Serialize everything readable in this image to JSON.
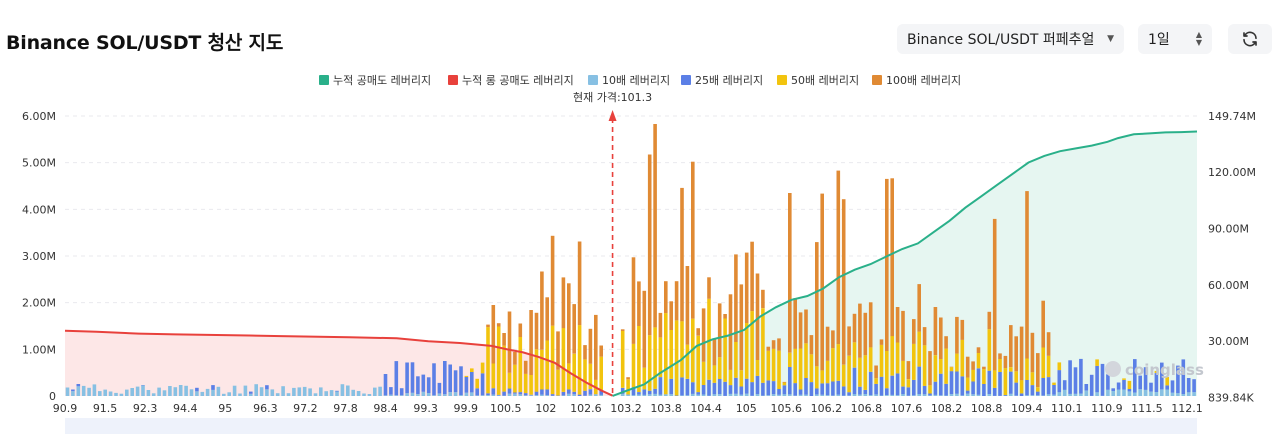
{
  "page": {
    "title": "Binance SOL/USDT 청산 지도"
  },
  "controls": {
    "exchange_select": {
      "value": "Binance SOL/USDT 퍼페추얼",
      "icon": "chevron-down-icon"
    },
    "interval_select": {
      "value": "1일",
      "icon": "up-down-arrows-icon"
    },
    "refresh_button": {
      "icon": "refresh-icon"
    }
  },
  "colors": {
    "cum_short": "#2ab08a",
    "cum_long": "#e8413c",
    "lev10": "#87c0e3",
    "lev25": "#5b7fe6",
    "lev50": "#f2c40e",
    "lev100": "#e08a34",
    "short_fill": "#e6f6f1",
    "long_fill": "#fde7e7"
  },
  "chart_data": {
    "type": "bar",
    "title": "",
    "legend": [
      {
        "key": "cum_short",
        "label": "누적 공매도 레버리지",
        "shape": "square"
      },
      {
        "key": "cum_long",
        "label": "누적 롱 공매도 레버리지",
        "shape": "square"
      },
      {
        "key": "lev10",
        "label": "10배 레버리지",
        "shape": "square"
      },
      {
        "key": "lev25",
        "label": "25배 레버리지",
        "shape": "square"
      },
      {
        "key": "lev50",
        "label": "50배 레버리지",
        "shape": "square"
      },
      {
        "key": "lev100",
        "label": "100배 레버리지",
        "shape": "square"
      }
    ],
    "legend_position": "top-center",
    "current_price": {
      "value": 101.3,
      "label": "현재 가격:101.3"
    },
    "x_range": [
      90.9,
      112.4
    ],
    "x_ticks": [
      "90.9",
      "91.5",
      "92.3",
      "94.4",
      "95",
      "96.3",
      "97.2",
      "97.8",
      "98.4",
      "99.3",
      "99.9",
      "100.5",
      "102",
      "102.6",
      "103.2",
      "103.8",
      "104.4",
      "105",
      "105.6",
      "106.2",
      "106.8",
      "107.6",
      "108.2",
      "108.8",
      "109.4",
      "110.1",
      "110.9",
      "111.5",
      "112.1"
    ],
    "y_left": {
      "range": [
        0,
        6000000
      ],
      "ticks": [
        "0",
        "1.00M",
        "2.00M",
        "3.00M",
        "4.00M",
        "5.00M",
        "6.00M"
      ]
    },
    "y_right": {
      "range": [
        839840,
        149740000
      ],
      "ticks": [
        "839.84K",
        "30.00M",
        "60.00M",
        "90.00M",
        "120.00M",
        "149.74M"
      ]
    },
    "grid": true,
    "watermark": "coinglass",
    "cumulative_long": [
      [
        90.9,
        35.5
      ],
      [
        91.5,
        35.0
      ],
      [
        92.3,
        34.0
      ],
      [
        93.0,
        33.6
      ],
      [
        94.4,
        33.0
      ],
      [
        95,
        32.7
      ],
      [
        96.3,
        32.1
      ],
      [
        97.2,
        31.5
      ],
      [
        97.8,
        30.0
      ],
      [
        98.4,
        29.0
      ],
      [
        99.0,
        27.5
      ],
      [
        99.3,
        25.6
      ],
      [
        99.6,
        24.0
      ],
      [
        99.9,
        21.5
      ],
      [
        100.2,
        18.5
      ],
      [
        100.5,
        13.0
      ],
      [
        100.8,
        8.0
      ],
      [
        101.1,
        3.6
      ],
      [
        101.3,
        1.0
      ]
    ],
    "cumulative_short": [
      [
        101.3,
        0.9
      ],
      [
        101.6,
        4
      ],
      [
        101.9,
        7
      ],
      [
        102.2,
        13
      ],
      [
        102.6,
        20
      ],
      [
        102.9,
        27.5
      ],
      [
        103.2,
        31
      ],
      [
        103.5,
        33
      ],
      [
        103.8,
        36
      ],
      [
        104.1,
        43
      ],
      [
        104.4,
        48
      ],
      [
        104.7,
        52
      ],
      [
        105,
        54
      ],
      [
        105.3,
        58
      ],
      [
        105.6,
        64
      ],
      [
        105.9,
        68
      ],
      [
        106.2,
        71
      ],
      [
        106.5,
        75
      ],
      [
        106.8,
        79
      ],
      [
        107.1,
        82
      ],
      [
        107.4,
        88
      ],
      [
        107.7,
        94
      ],
      [
        108.0,
        101
      ],
      [
        108.3,
        107
      ],
      [
        108.6,
        113
      ],
      [
        108.9,
        119
      ],
      [
        109.2,
        125
      ],
      [
        109.5,
        128.5
      ],
      [
        109.8,
        131
      ],
      [
        110.1,
        132.5
      ],
      [
        110.4,
        134
      ],
      [
        110.7,
        136
      ],
      [
        110.9,
        138
      ],
      [
        111.2,
        140
      ],
      [
        111.5,
        140.5
      ],
      [
        111.8,
        141
      ],
      [
        112.1,
        141.2
      ],
      [
        112.4,
        141.5
      ]
    ]
  }
}
